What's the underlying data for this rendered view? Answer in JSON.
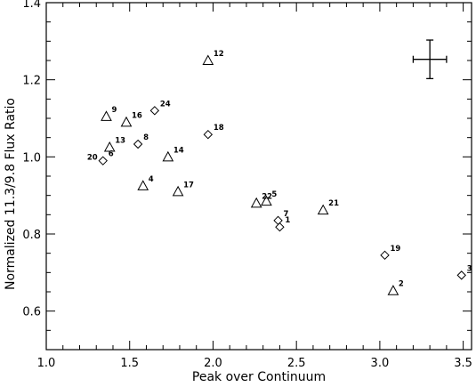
{
  "chart_data": {
    "type": "scatter",
    "title": "",
    "xlabel": "Peak over Continuum",
    "ylabel": "Normalized 11.3/9.8 Flux Ratio",
    "xlim": [
      1.0,
      3.55
    ],
    "ylim": [
      0.5,
      1.4
    ],
    "xticks": [
      1.0,
      1.5,
      2.0,
      2.5,
      3.0,
      3.5
    ],
    "xtick_labels": [
      "1.0",
      "1.5",
      "2.0",
      "2.5",
      "3.0",
      "3.5"
    ],
    "yticks": [
      0.6,
      0.8,
      1.0,
      1.2,
      1.4
    ],
    "ytick_labels": [
      "0.6",
      "0.8",
      "1.0",
      "1.2",
      "1.4"
    ],
    "grid": false,
    "legend": "none",
    "series": [
      {
        "marker": "triangle",
        "points": [
          {
            "label": "12",
            "x": 1.97,
            "y": 1.25
          },
          {
            "label": "9",
            "x": 1.36,
            "y": 1.105
          },
          {
            "label": "16",
            "x": 1.48,
            "y": 1.09
          },
          {
            "label": "13",
            "x": 1.38,
            "y": 1.025
          },
          {
            "label": "14",
            "x": 1.73,
            "y": 1.0
          },
          {
            "label": "4",
            "x": 1.58,
            "y": 0.925
          },
          {
            "label": "17",
            "x": 1.79,
            "y": 0.91
          },
          {
            "label": "22",
            "x": 2.26,
            "y": 0.88
          },
          {
            "label": "5",
            "x": 2.32,
            "y": 0.885
          },
          {
            "label": "21",
            "x": 2.66,
            "y": 0.862
          },
          {
            "label": "2",
            "x": 3.08,
            "y": 0.653
          }
        ]
      },
      {
        "marker": "diamond",
        "points": [
          {
            "label": "24",
            "x": 1.65,
            "y": 1.12
          },
          {
            "label": "18",
            "x": 1.97,
            "y": 1.058
          },
          {
            "label": "8",
            "x": 1.55,
            "y": 1.033
          },
          {
            "label": "6",
            "x": 1.34,
            "y": 0.99
          },
          {
            "label": "7",
            "x": 2.39,
            "y": 0.835
          },
          {
            "label": "1",
            "x": 2.4,
            "y": 0.818
          },
          {
            "label": "19",
            "x": 3.03,
            "y": 0.745
          },
          {
            "label": "3",
            "x": 3.49,
            "y": 0.693
          }
        ]
      }
    ],
    "extra_labels": [
      {
        "text": "20",
        "x": 1.34,
        "y": 0.99
      }
    ],
    "error_bar": {
      "x": 3.3,
      "y": 1.253,
      "xerr": 0.1,
      "yerr": 0.05
    }
  }
}
